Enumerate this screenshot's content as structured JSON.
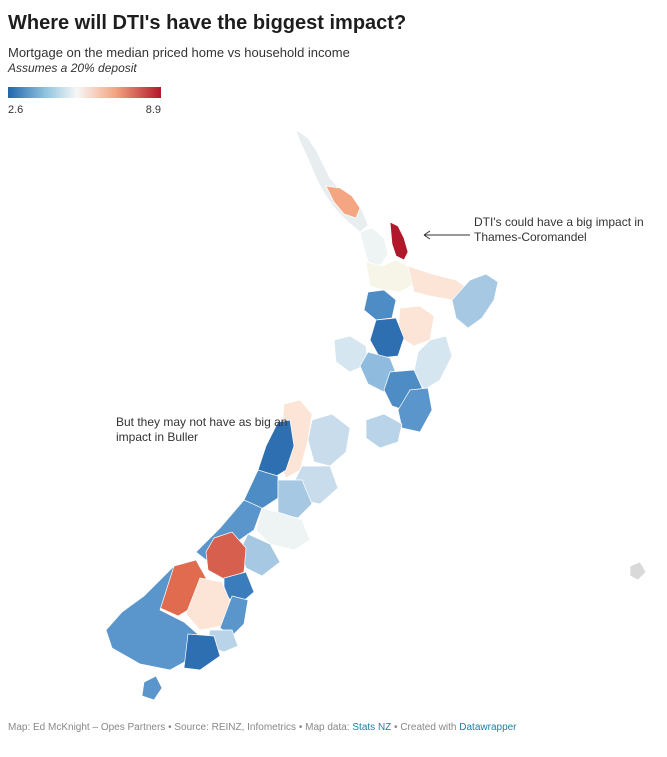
{
  "title": "Where will DTI's have the biggest impact?",
  "subtitle": "Mortgage on the median priced home vs household income",
  "note": "Assumes a 20% deposit",
  "legend": {
    "min": "2.6",
    "max": "8.9"
  },
  "colors": {
    "low": "#2b6fb4",
    "mid": "#f6f6f6",
    "high": "#b2182b"
  },
  "annotations": {
    "top": "DTI's could have a big impact in Thames-Coromandel",
    "bottom": "But they may not have as big an impact in Buller"
  },
  "footer": {
    "text": "Map: Ed McKnight – Opes Partners • Source: REINZ, Infometrics • Map data: ",
    "link1": "Stats NZ",
    "mid": " • Created with ",
    "link2": "Datawrapper"
  }
}
